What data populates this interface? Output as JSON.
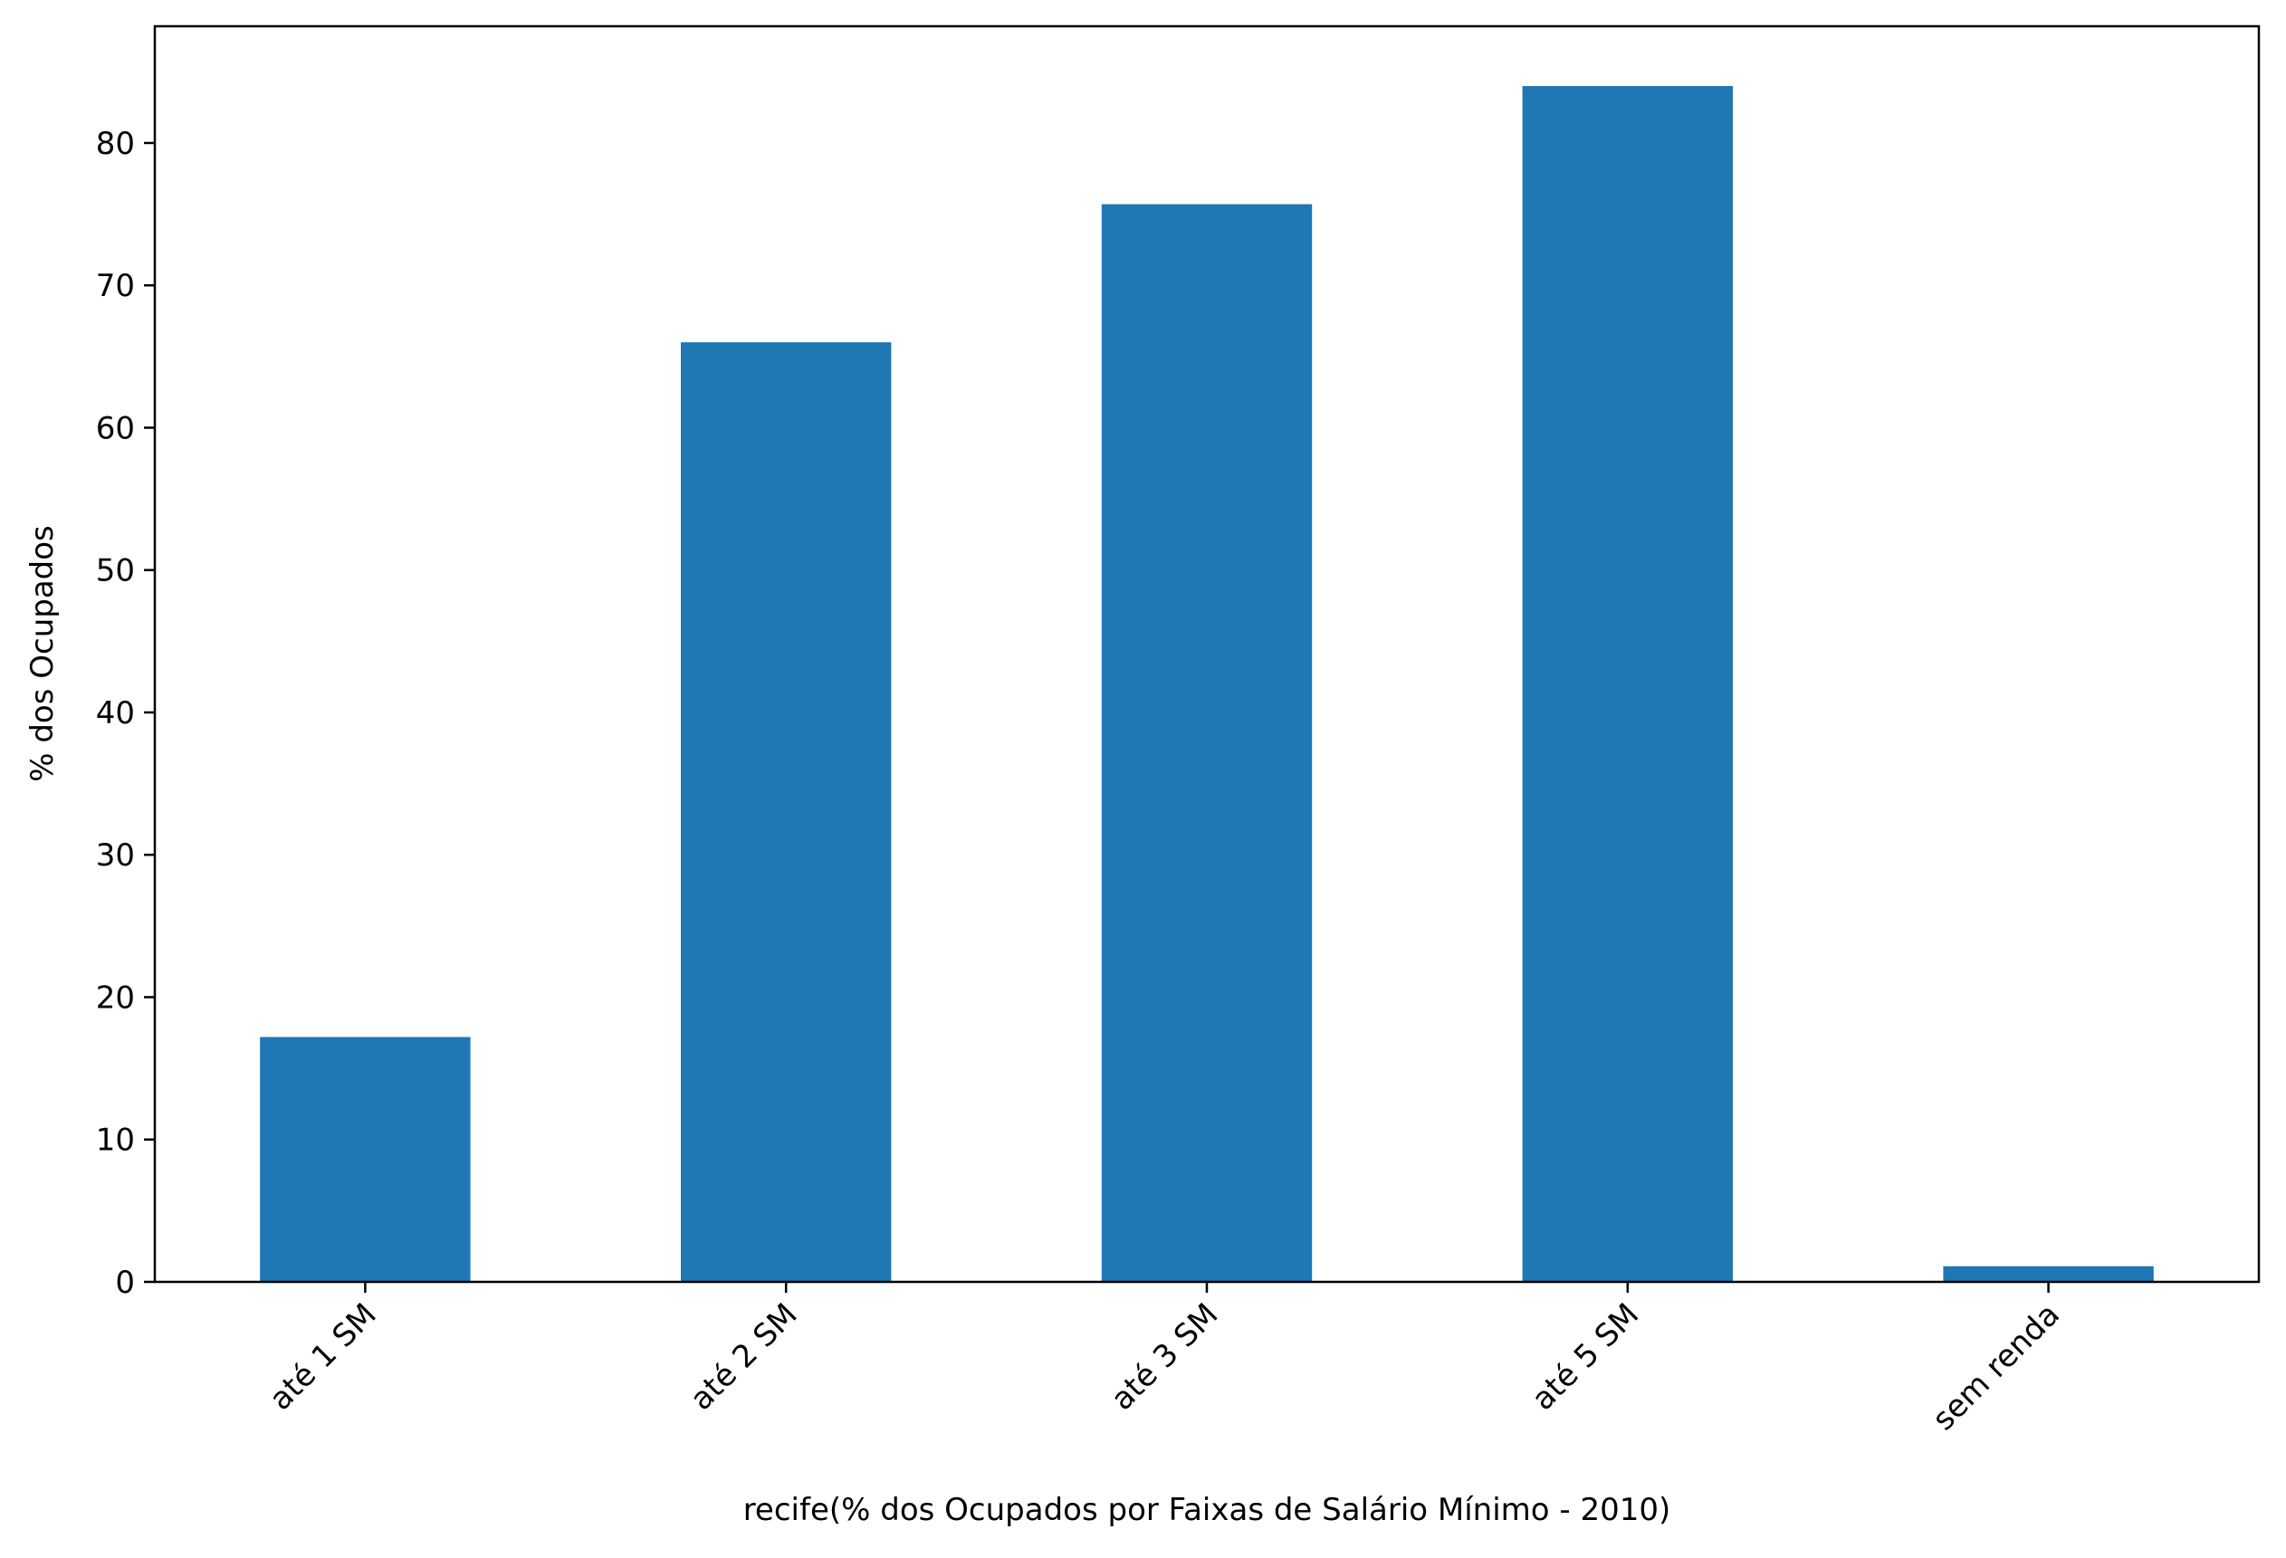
{
  "chart_data": {
    "type": "bar",
    "categories": [
      "até 1 SM",
      "até 2 SM",
      "até 3 SM",
      "até 5 SM",
      "sem renda"
    ],
    "values": [
      17.2,
      66.0,
      75.7,
      84.0,
      1.1
    ],
    "xlabel": "recife(% dos Ocupados por Faixas de Salário Mínimo - 2010)",
    "ylabel": "% dos Ocupados",
    "ylim": [
      0,
      88.2
    ],
    "yticks": [
      0,
      10,
      20,
      30,
      40,
      50,
      60,
      70,
      80
    ],
    "xtick_rotation": 45,
    "grid": false,
    "legend": "none",
    "bar_color": "#1f77b4"
  }
}
